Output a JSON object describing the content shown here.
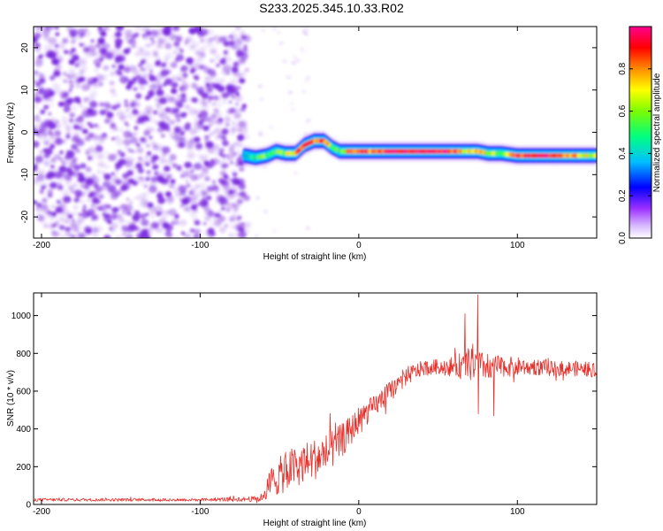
{
  "figure_title": "S233.2025.345.10.33.R02",
  "colors": {
    "noise": "#7b2be0",
    "snr_line": "#e8302b",
    "colormap": [
      "#ffffff",
      "#9b30ff",
      "#0000ff",
      "#00bfff",
      "#00ff7f",
      "#7cfc00",
      "#ffff00",
      "#ff8c00",
      "#ff0000",
      "#ff0090"
    ]
  },
  "chart_data": [
    {
      "type": "heatmap",
      "title": "",
      "xlabel": "Height of straight line (km)",
      "ylabel": "Frequency (Hz)",
      "xlim": [
        -205,
        150
      ],
      "ylim": [
        -25,
        25
      ],
      "x_ticks": [
        {
          "value": -200,
          "label": "-200"
        },
        {
          "value": -100,
          "label": "-100"
        },
        {
          "value": 0,
          "label": "0"
        },
        {
          "value": 100,
          "label": "100"
        }
      ],
      "y_ticks": [
        {
          "value": -20,
          "label": "-20"
        },
        {
          "value": -10,
          "label": "-10"
        },
        {
          "value": 0,
          "label": "0"
        },
        {
          "value": 10,
          "label": "10"
        },
        {
          "value": 20,
          "label": "20"
        }
      ],
      "noise_region_x": [
        -205,
        -70
      ],
      "signal_track": {
        "x": [
          -72,
          -65,
          -58,
          -52,
          -46,
          -40,
          -34,
          -28,
          -22,
          -17,
          -12,
          -6,
          0,
          6,
          12,
          18,
          25,
          35,
          45,
          55,
          62,
          68,
          75,
          82,
          90,
          100,
          110,
          120,
          130,
          140,
          150
        ],
        "y": [
          -5.5,
          -6.0,
          -5.5,
          -4.5,
          -5.0,
          -5.0,
          -3.0,
          -2.0,
          -2.0,
          -3.5,
          -4.5,
          -4.5,
          -4.5,
          -4.5,
          -4.5,
          -4.5,
          -4.5,
          -4.5,
          -4.5,
          -4.5,
          -4.5,
          -4.5,
          -4.5,
          -5.0,
          -5.0,
          -5.5,
          -5.5,
          -5.5,
          -5.5,
          -5.5,
          -5.5
        ],
        "amplitude": [
          0.35,
          0.45,
          0.55,
          0.5,
          0.6,
          0.75,
          0.85,
          0.8,
          0.9,
          0.55,
          0.5,
          0.75,
          0.9,
          0.85,
          0.8,
          0.9,
          0.95,
          0.95,
          0.95,
          0.95,
          0.85,
          0.7,
          0.75,
          0.65,
          0.6,
          0.9,
          0.95,
          0.95,
          0.8,
          0.7,
          0.6
        ]
      },
      "colorbar": {
        "label": "Normalized spectral amplitude",
        "range": [
          0,
          1
        ],
        "ticks": [
          {
            "value": 0.0,
            "label": "0.0"
          },
          {
            "value": 0.2,
            "label": "0.2"
          },
          {
            "value": 0.4,
            "label": "0.4"
          },
          {
            "value": 0.6,
            "label": "0.6"
          },
          {
            "value": 0.8,
            "label": "0.8"
          }
        ]
      }
    },
    {
      "type": "line",
      "title": "",
      "xlabel": "Height of straight line (km)",
      "ylabel": "SNR (10 * v/v)",
      "xlim": [
        -205,
        150
      ],
      "ylim": [
        0,
        1120
      ],
      "x_ticks": [
        {
          "value": -200,
          "label": "-200"
        },
        {
          "value": -100,
          "label": "-100"
        },
        {
          "value": 0,
          "label": "0"
        },
        {
          "value": 100,
          "label": "100"
        }
      ],
      "y_ticks": [
        {
          "value": 0,
          "label": "0"
        },
        {
          "value": 200,
          "label": "200"
        },
        {
          "value": 400,
          "label": "400"
        },
        {
          "value": 600,
          "label": "600"
        },
        {
          "value": 800,
          "label": "800"
        },
        {
          "value": 1000,
          "label": "1000"
        }
      ],
      "series": [
        {
          "name": "SNR",
          "trend_x": [
            -205,
            -100,
            -62,
            -55,
            -45,
            -35,
            -25,
            -15,
            -5,
            0,
            10,
            20,
            30,
            40,
            50,
            60,
            70,
            80,
            90,
            100,
            110,
            120,
            130,
            140,
            150
          ],
          "trend_y": [
            25,
            25,
            30,
            120,
            180,
            220,
            250,
            300,
            390,
            450,
            520,
            600,
            680,
            720,
            730,
            730,
            740,
            730,
            730,
            730,
            730,
            720,
            720,
            720,
            710
          ],
          "noise_amplitude": [
            8,
            8,
            15,
            90,
            110,
            110,
            110,
            100,
            80,
            70,
            60,
            55,
            50,
            40,
            40,
            55,
            90,
            70,
            55,
            50,
            45,
            40,
            40,
            40,
            40
          ],
          "peaks": [
            {
              "x": 67,
              "y": 1010
            },
            {
              "x": 72,
              "y": 850
            },
            {
              "x": 75,
              "y": 1110
            },
            {
              "x": 75.5,
              "y": 480
            },
            {
              "x": 85,
              "y": 470
            }
          ]
        }
      ]
    }
  ]
}
